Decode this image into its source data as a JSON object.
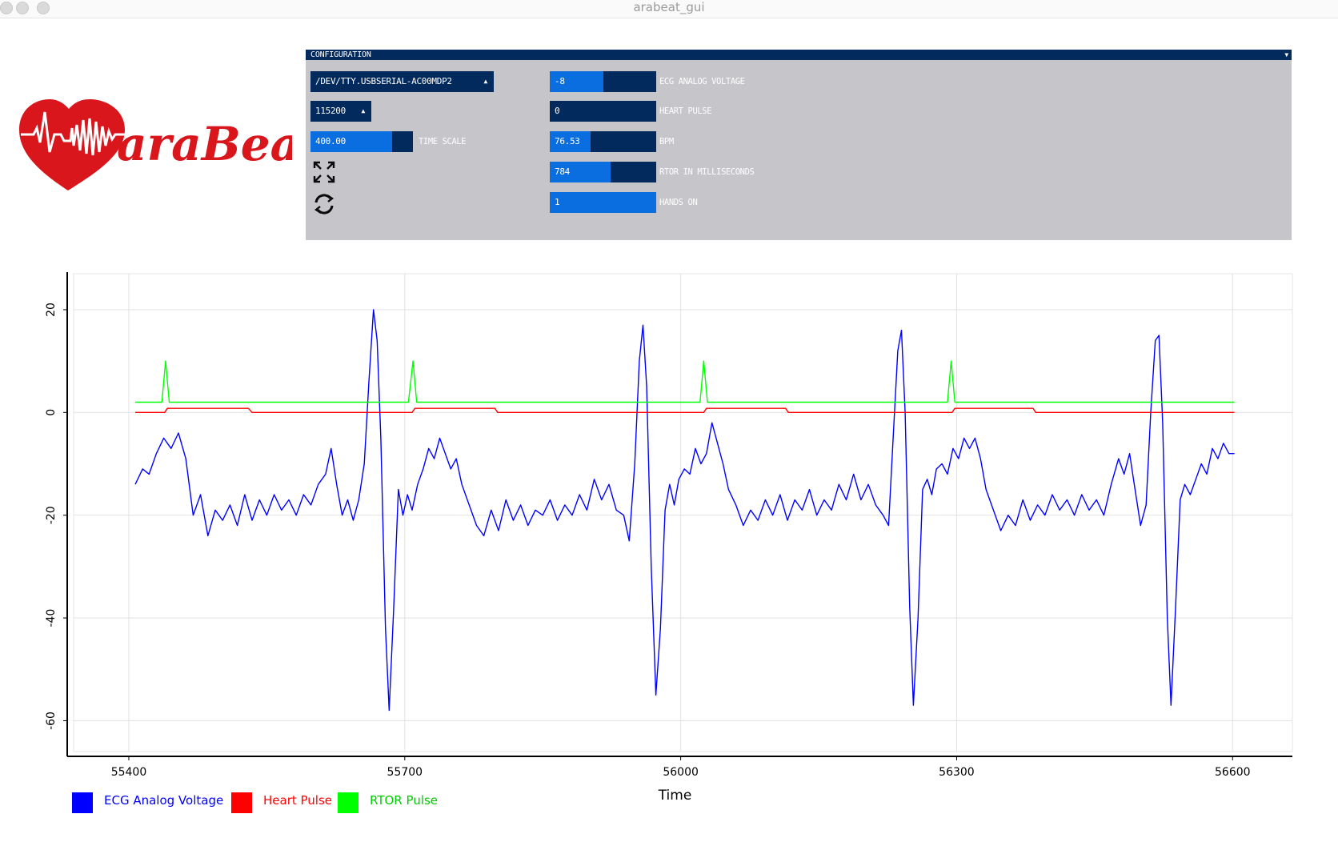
{
  "window": {
    "title": "arabeat_gui"
  },
  "logo": {
    "text": "araBeat"
  },
  "config": {
    "header": "CONFIGURATION",
    "port": {
      "value": "/DEV/TTY.USBSERIAL-AC00MDP2"
    },
    "baud": {
      "value": "115200"
    },
    "timescale": {
      "value": "400.00",
      "label": "TIME SCALE",
      "fill": 0.8
    },
    "expand_icon": "expand-icon",
    "refresh_icon": "refresh-icon",
    "readouts": [
      {
        "value": "-8",
        "label": "ECG ANALOG VOLTAGE",
        "fill": 0.5
      },
      {
        "value": "0",
        "label": "HEART PULSE",
        "fill": 0.0
      },
      {
        "value": "76.53",
        "label": "BPM",
        "fill": 0.38
      },
      {
        "value": "784",
        "label": "RTOR IN MILLISECONDS",
        "fill": 0.57
      },
      {
        "value": "1",
        "label": "HANDS ON",
        "fill": 1.0
      }
    ]
  },
  "colors": {
    "panel": "#c5c5ca",
    "dark": "#022a5c",
    "accent": "#0a6ee0",
    "ecg": "#0000ff",
    "pulse": "#ff0000",
    "rtor": "#00ff00"
  },
  "chart_data": {
    "type": "line",
    "title": "",
    "xlabel": "Time",
    "ylabel": "",
    "xlim": [
      55340,
      56665
    ],
    "ylim": [
      -66,
      27
    ],
    "xticks": [
      55400,
      55700,
      56000,
      56300,
      56600
    ],
    "yticks": [
      20,
      0,
      -20,
      -40,
      -60
    ],
    "xtick_labels": [
      "55400",
      "55700",
      "56000",
      "56300",
      "56600"
    ],
    "ytick_labels": [
      "20",
      "0",
      "-20",
      "-40",
      "-60"
    ],
    "grid": true,
    "legend_position": "bottom-left",
    "series": [
      {
        "name": "ECG Analog Voltage",
        "color": "#0000ff",
        "points": [
          [
            55407,
            -14
          ],
          [
            55415,
            -11
          ],
          [
            55422,
            -12
          ],
          [
            55430,
            -8
          ],
          [
            55438,
            -5
          ],
          [
            55446,
            -7
          ],
          [
            55454,
            -4
          ],
          [
            55462,
            -9
          ],
          [
            55470,
            -20
          ],
          [
            55478,
            -16
          ],
          [
            55486,
            -24
          ],
          [
            55494,
            -19
          ],
          [
            55502,
            -21
          ],
          [
            55510,
            -18
          ],
          [
            55518,
            -22
          ],
          [
            55526,
            -16
          ],
          [
            55534,
            -21
          ],
          [
            55542,
            -17
          ],
          [
            55550,
            -20
          ],
          [
            55558,
            -16
          ],
          [
            55566,
            -19
          ],
          [
            55574,
            -17
          ],
          [
            55582,
            -20
          ],
          [
            55590,
            -16
          ],
          [
            55598,
            -18
          ],
          [
            55606,
            -14
          ],
          [
            55614,
            -12
          ],
          [
            55620,
            -7
          ],
          [
            55626,
            -14
          ],
          [
            55632,
            -20
          ],
          [
            55638,
            -17
          ],
          [
            55644,
            -21
          ],
          [
            55650,
            -17
          ],
          [
            55656,
            -10
          ],
          [
            55661,
            6
          ],
          [
            55666,
            20
          ],
          [
            55670,
            14
          ],
          [
            55674,
            -5
          ],
          [
            55679,
            -42
          ],
          [
            55683,
            -58
          ],
          [
            55688,
            -38
          ],
          [
            55693,
            -15
          ],
          [
            55698,
            -20
          ],
          [
            55703,
            -16
          ],
          [
            55708,
            -19
          ],
          [
            55714,
            -14
          ],
          [
            55720,
            -11
          ],
          [
            55726,
            -7
          ],
          [
            55732,
            -9
          ],
          [
            55738,
            -5
          ],
          [
            55744,
            -8
          ],
          [
            55750,
            -11
          ],
          [
            55756,
            -9
          ],
          [
            55762,
            -14
          ],
          [
            55770,
            -18
          ],
          [
            55778,
            -22
          ],
          [
            55786,
            -24
          ],
          [
            55794,
            -19
          ],
          [
            55802,
            -23
          ],
          [
            55810,
            -17
          ],
          [
            55818,
            -21
          ],
          [
            55826,
            -18
          ],
          [
            55834,
            -22
          ],
          [
            55842,
            -19
          ],
          [
            55850,
            -20
          ],
          [
            55858,
            -17
          ],
          [
            55866,
            -21
          ],
          [
            55874,
            -18
          ],
          [
            55882,
            -20
          ],
          [
            55890,
            -16
          ],
          [
            55898,
            -19
          ],
          [
            55906,
            -13
          ],
          [
            55914,
            -17
          ],
          [
            55922,
            -14
          ],
          [
            55930,
            -19
          ],
          [
            55938,
            -20
          ],
          [
            55944,
            -25
          ],
          [
            55950,
            -10
          ],
          [
            55955,
            10
          ],
          [
            55959,
            17
          ],
          [
            55963,
            5
          ],
          [
            55968,
            -30
          ],
          [
            55973,
            -55
          ],
          [
            55978,
            -42
          ],
          [
            55983,
            -19
          ],
          [
            55988,
            -14
          ],
          [
            55993,
            -18
          ],
          [
            55998,
            -13
          ],
          [
            56004,
            -11
          ],
          [
            56010,
            -12
          ],
          [
            56016,
            -7
          ],
          [
            56022,
            -10
          ],
          [
            56028,
            -8
          ],
          [
            56034,
            -2
          ],
          [
            56040,
            -6
          ],
          [
            56046,
            -10
          ],
          [
            56052,
            -15
          ],
          [
            56060,
            -18
          ],
          [
            56068,
            -22
          ],
          [
            56076,
            -19
          ],
          [
            56084,
            -21
          ],
          [
            56092,
            -17
          ],
          [
            56100,
            -20
          ],
          [
            56108,
            -16
          ],
          [
            56116,
            -21
          ],
          [
            56124,
            -17
          ],
          [
            56132,
            -19
          ],
          [
            56140,
            -15
          ],
          [
            56148,
            -20
          ],
          [
            56156,
            -17
          ],
          [
            56164,
            -19
          ],
          [
            56172,
            -14
          ],
          [
            56180,
            -17
          ],
          [
            56188,
            -12
          ],
          [
            56196,
            -17
          ],
          [
            56204,
            -14
          ],
          [
            56212,
            -18
          ],
          [
            56220,
            -20
          ],
          [
            56226,
            -22
          ],
          [
            56231,
            -5
          ],
          [
            56236,
            12
          ],
          [
            56240,
            16
          ],
          [
            56244,
            0
          ],
          [
            56249,
            -38
          ],
          [
            56253,
            -57
          ],
          [
            56258,
            -40
          ],
          [
            56263,
            -15
          ],
          [
            56268,
            -13
          ],
          [
            56273,
            -16
          ],
          [
            56278,
            -11
          ],
          [
            56284,
            -10
          ],
          [
            56290,
            -12
          ],
          [
            56296,
            -7
          ],
          [
            56302,
            -9
          ],
          [
            56308,
            -5
          ],
          [
            56314,
            -7
          ],
          [
            56320,
            -5
          ],
          [
            56326,
            -9
          ],
          [
            56332,
            -15
          ],
          [
            56340,
            -19
          ],
          [
            56348,
            -23
          ],
          [
            56356,
            -20
          ],
          [
            56364,
            -22
          ],
          [
            56372,
            -17
          ],
          [
            56380,
            -21
          ],
          [
            56388,
            -18
          ],
          [
            56396,
            -20
          ],
          [
            56404,
            -16
          ],
          [
            56412,
            -19
          ],
          [
            56420,
            -17
          ],
          [
            56428,
            -20
          ],
          [
            56436,
            -16
          ],
          [
            56444,
            -19
          ],
          [
            56452,
            -17
          ],
          [
            56460,
            -20
          ],
          [
            56468,
            -14
          ],
          [
            56476,
            -9
          ],
          [
            56482,
            -12
          ],
          [
            56488,
            -8
          ],
          [
            56494,
            -15
          ],
          [
            56500,
            -22
          ],
          [
            56506,
            -18
          ],
          [
            56511,
            0
          ],
          [
            56516,
            14
          ],
          [
            56520,
            15
          ],
          [
            56524,
            -2
          ],
          [
            56529,
            -40
          ],
          [
            56533,
            -57
          ],
          [
            56538,
            -38
          ],
          [
            56543,
            -17
          ],
          [
            56548,
            -14
          ],
          [
            56554,
            -16
          ],
          [
            56560,
            -13
          ],
          [
            56566,
            -10
          ],
          [
            56572,
            -12
          ],
          [
            56578,
            -7
          ],
          [
            56584,
            -9
          ],
          [
            56590,
            -6
          ],
          [
            56596,
            -8
          ],
          [
            56602,
            -8
          ]
        ]
      },
      {
        "name": "Heart Pulse",
        "color": "#ff0000",
        "points": [
          [
            55407,
            0
          ],
          [
            55439,
            0
          ],
          [
            55442,
            0.8
          ],
          [
            55530,
            0.8
          ],
          [
            55534,
            0
          ],
          [
            55708,
            0
          ],
          [
            55711,
            0.8
          ],
          [
            55798,
            0.8
          ],
          [
            55801,
            0
          ],
          [
            56025,
            0
          ],
          [
            56028,
            0.8
          ],
          [
            56114,
            0.8
          ],
          [
            56117,
            0
          ],
          [
            56295,
            0
          ],
          [
            56298,
            0.8
          ],
          [
            56383,
            0.8
          ],
          [
            56386,
            0
          ],
          [
            56602,
            0
          ]
        ]
      },
      {
        "name": "RTOR Pulse",
        "color": "#00ff00",
        "points": [
          [
            55407,
            2
          ],
          [
            55436,
            2
          ],
          [
            55440,
            10
          ],
          [
            55444,
            2
          ],
          [
            55704,
            2
          ],
          [
            55709,
            10
          ],
          [
            55713,
            2
          ],
          [
            56021,
            2
          ],
          [
            56025,
            10
          ],
          [
            56029,
            2
          ],
          [
            56290,
            2
          ],
          [
            56294,
            10
          ],
          [
            56298,
            2
          ],
          [
            56602,
            2
          ]
        ]
      }
    ]
  }
}
